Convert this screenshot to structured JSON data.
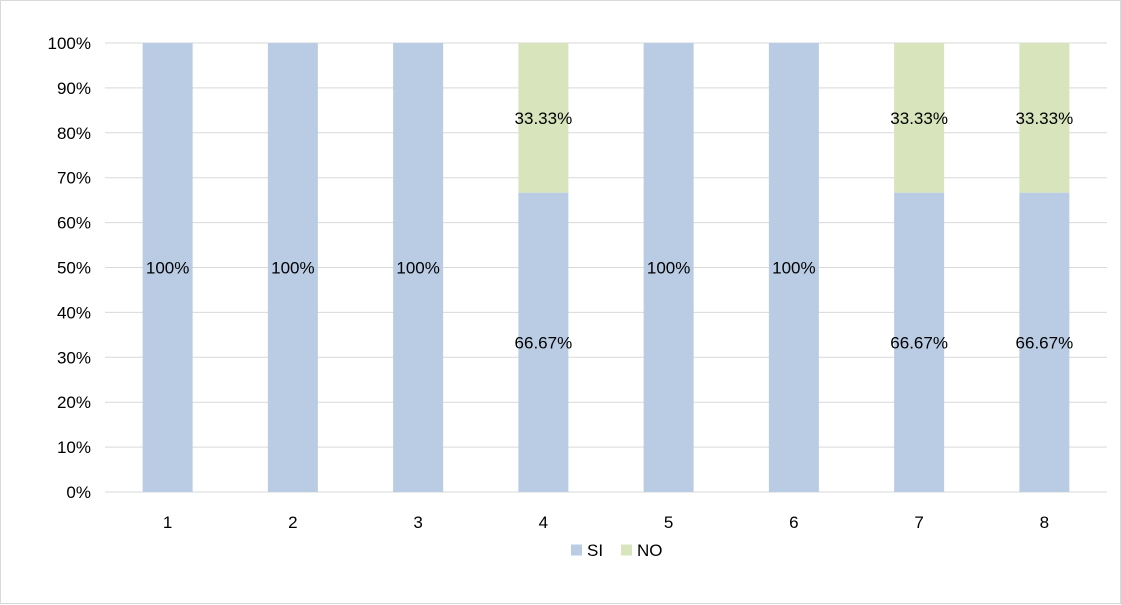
{
  "chart_data": {
    "type": "bar",
    "stacked": true,
    "categories": [
      "1",
      "2",
      "3",
      "4",
      "5",
      "6",
      "7",
      "8"
    ],
    "series": [
      {
        "name": "SI",
        "color": "#b9cce4",
        "values": [
          100,
          100,
          100,
          66.67,
          100,
          100,
          66.67,
          66.67
        ],
        "labels": [
          "100%",
          "100%",
          "100%",
          "66.67%",
          "100%",
          "100%",
          "66.67%",
          "66.67%"
        ]
      },
      {
        "name": "NO",
        "color": "#d8e4bc",
        "values": [
          0,
          0,
          0,
          33.33,
          0,
          0,
          33.33,
          33.33
        ],
        "labels": [
          "",
          "",
          "",
          "33.33%",
          "",
          "",
          "33.33%",
          "33.33%"
        ]
      }
    ],
    "title": "",
    "xlabel": "",
    "ylabel": "",
    "ylim": [
      0,
      100
    ],
    "yticks": [
      "0%",
      "10%",
      "20%",
      "30%",
      "40%",
      "50%",
      "60%",
      "70%",
      "80%",
      "90%",
      "100%"
    ],
    "grid": true,
    "legend_position": "bottom",
    "gridline_color": "#d9d9d9"
  }
}
